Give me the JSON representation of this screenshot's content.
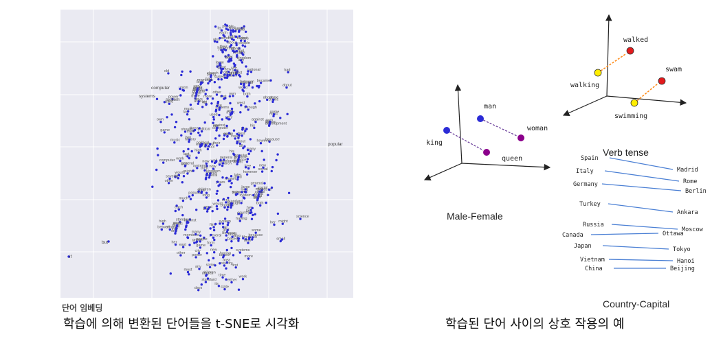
{
  "tsne": {
    "caption": "단어 임베딩",
    "bottom_caption": "학습에 의해 변환된 단어들을 t-SNE로 시각화",
    "words": [
      "two",
      "one",
      "three",
      "group",
      "children",
      "social",
      "political",
      "computer",
      "systems",
      "system",
      "standard",
      "development",
      "science",
      "history",
      "between",
      "members",
      "popular",
      "states",
      "kingdom",
      "union",
      "game",
      "film",
      "music",
      "through",
      "against",
      "about",
      "about",
      "however",
      "because",
      "became",
      "could",
      "should",
      "would",
      "might",
      "must",
      "then",
      "now",
      "also",
      "both",
      "either",
      "very",
      "much",
      "more",
      "most",
      "several",
      "many",
      "some",
      "any",
      "all",
      "each",
      "other",
      "time",
      "work",
      "world",
      "people",
      "country",
      "city",
      "state",
      "own",
      "public",
      "church",
      "god",
      "her",
      "his",
      "their",
      "its",
      "school",
      "national",
      "general",
      "later",
      "based",
      "known",
      "used",
      "long",
      "great",
      "first",
      "last",
      "best",
      "high",
      "small",
      "large",
      "old",
      "new",
      "years",
      "days",
      "east",
      "west",
      "area",
      "law",
      "form",
      "power",
      "free",
      "both",
      "being",
      "having",
      "has",
      "had",
      "see",
      "use",
      "had",
      "well",
      "by",
      "if"
    ],
    "legible_labels": {
      "computer": "computer",
      "systems": "systems",
      "system": "system",
      "popular": "popular",
      "but": "but",
      "if": "if"
    }
  },
  "relations": {
    "bottom_caption": "학습된 단어 사이의 상호 작용의 예",
    "male_female": {
      "title": "Male-Female",
      "words": {
        "man": "man",
        "woman": "woman",
        "king": "king",
        "queen": "queen"
      }
    },
    "verb_tense": {
      "title": "Verb tense",
      "words": {
        "walking": "walking",
        "walked": "walked",
        "swimming": "swimming",
        "swam": "swam"
      }
    },
    "country_capital": {
      "title": "Country-Capital",
      "pairs": [
        {
          "country": "Spain",
          "capital": "Madrid"
        },
        {
          "country": "Italy",
          "capital": "Rome"
        },
        {
          "country": "Germany",
          "capital": "Berlin"
        },
        {
          "country": "Turkey",
          "capital": "Ankara"
        },
        {
          "country": "Russia",
          "capital": "Moscow"
        },
        {
          "country": "Canada",
          "capital": "Ottawa"
        },
        {
          "country": "Japan",
          "capital": "Tokyo"
        },
        {
          "country": "Vietnam",
          "capital": "Hanoi"
        },
        {
          "country": "China",
          "capital": "Beijing"
        }
      ]
    }
  },
  "colors": {
    "point_blue": "#2b2bd6",
    "purple": "#8b008b",
    "arrow_purple": "#6a3d9a",
    "red": "#e31a1c",
    "yellow": "#ffee00",
    "orange": "#ff8c1a",
    "line_blue": "#4a7fd4"
  }
}
